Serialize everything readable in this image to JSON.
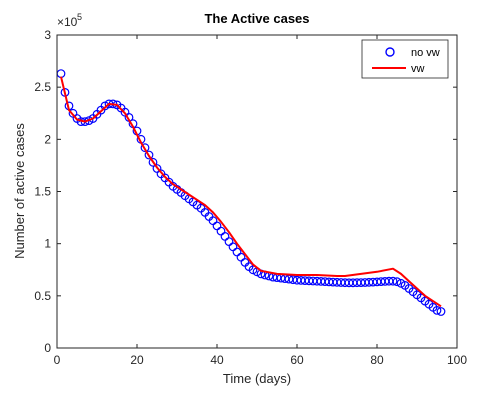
{
  "chart_data": {
    "type": "line",
    "title": "The Active cases",
    "xlabel": "Time (days)",
    "ylabel": "Number of active cases",
    "y_exponent_label": "×10",
    "y_exponent_power": "5",
    "xlim": [
      0,
      100
    ],
    "ylim": [
      0,
      3
    ],
    "xticks": [
      0,
      20,
      40,
      60,
      80,
      100
    ],
    "xtick_labels": [
      "0",
      "20",
      "40",
      "60",
      "80",
      "100"
    ],
    "yticks": [
      0,
      0.5,
      1,
      1.5,
      2,
      2.5,
      3
    ],
    "ytick_labels": [
      "0",
      "0.5",
      "1",
      "1.5",
      "2",
      "2.5",
      "3"
    ],
    "grid": false,
    "legend_position": "top-right",
    "series": [
      {
        "name": "no vw",
        "style": "markers",
        "marker": "circle",
        "color": "#0000ff",
        "x": [
          1,
          2,
          3,
          4,
          5,
          6,
          7,
          8,
          9,
          10,
          11,
          12,
          13,
          14,
          15,
          16,
          17,
          18,
          19,
          20,
          21,
          22,
          23,
          24,
          25,
          26,
          27,
          28,
          29,
          30,
          31,
          32,
          33,
          34,
          35,
          36,
          37,
          38,
          39,
          40,
          41,
          42,
          43,
          44,
          45,
          46,
          47,
          48,
          49,
          50,
          51,
          52,
          53,
          54,
          55,
          56,
          57,
          58,
          59,
          60,
          61,
          62,
          63,
          64,
          65,
          66,
          67,
          68,
          69,
          70,
          71,
          72,
          73,
          74,
          75,
          76,
          77,
          78,
          79,
          80,
          81,
          82,
          83,
          84,
          85,
          86,
          87,
          88,
          89,
          90,
          91,
          92,
          93,
          94,
          95,
          96
        ],
        "y": [
          2.63,
          2.45,
          2.32,
          2.25,
          2.2,
          2.17,
          2.17,
          2.18,
          2.2,
          2.24,
          2.28,
          2.32,
          2.34,
          2.34,
          2.33,
          2.3,
          2.26,
          2.21,
          2.15,
          2.08,
          2.0,
          1.92,
          1.85,
          1.78,
          1.72,
          1.67,
          1.63,
          1.59,
          1.55,
          1.52,
          1.49,
          1.46,
          1.43,
          1.4,
          1.37,
          1.34,
          1.3,
          1.26,
          1.22,
          1.17,
          1.12,
          1.07,
          1.02,
          0.97,
          0.92,
          0.87,
          0.82,
          0.78,
          0.75,
          0.73,
          0.71,
          0.7,
          0.69,
          0.68,
          0.675,
          0.67,
          0.665,
          0.66,
          0.655,
          0.65,
          0.648,
          0.646,
          0.644,
          0.642,
          0.64,
          0.638,
          0.636,
          0.634,
          0.632,
          0.63,
          0.628,
          0.626,
          0.625,
          0.625,
          0.626,
          0.627,
          0.628,
          0.63,
          0.632,
          0.634,
          0.636,
          0.638,
          0.64,
          0.64,
          0.635,
          0.62,
          0.6,
          0.57,
          0.54,
          0.51,
          0.48,
          0.45,
          0.42,
          0.39,
          0.36,
          0.35
        ]
      },
      {
        "name": "vw",
        "style": "line",
        "color": "#ff0000",
        "x": [
          1,
          3,
          5,
          7,
          9,
          11,
          13,
          15,
          17,
          19,
          21,
          23,
          25,
          27,
          29,
          31,
          33,
          35,
          37,
          39,
          41,
          43,
          45,
          47,
          49,
          51,
          55,
          60,
          65,
          70,
          72,
          76,
          80,
          84,
          86,
          88,
          90,
          92,
          94,
          96
        ],
        "y": [
          2.6,
          2.28,
          2.19,
          2.17,
          2.2,
          2.27,
          2.34,
          2.33,
          2.25,
          2.12,
          1.97,
          1.84,
          1.73,
          1.64,
          1.57,
          1.52,
          1.47,
          1.42,
          1.37,
          1.3,
          1.21,
          1.11,
          1.0,
          0.9,
          0.8,
          0.74,
          0.71,
          0.7,
          0.7,
          0.69,
          0.69,
          0.71,
          0.73,
          0.76,
          0.71,
          0.64,
          0.57,
          0.5,
          0.45,
          0.4
        ]
      }
    ]
  }
}
